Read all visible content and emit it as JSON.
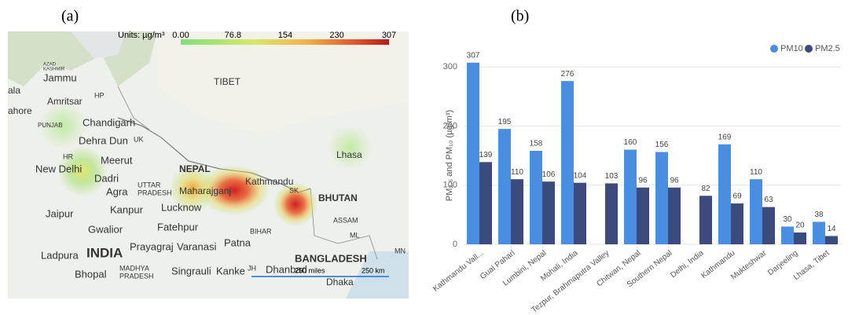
{
  "map": {
    "panel_label": "(a)",
    "units": "Units: µg/m³",
    "colorbar_ticks": [
      {
        "value": 0,
        "label": "0.00"
      },
      76.8,
      154,
      230,
      307
    ],
    "colorbar_lim": [
      0,
      307
    ],
    "places": [
      "Jammu",
      "Amritsar",
      "HP",
      "Chandigarh",
      "PUNJAB",
      "Dehra Dun",
      "UK",
      "HR",
      "New Delhi",
      "Meerut",
      "Dadri",
      "UTTAR",
      "PRADESH",
      "Agra",
      "Kanpur",
      "Lucknow",
      "Jaipur",
      "Gwalior",
      "Fatehpur",
      "Prayagraj",
      "Varanasi",
      "Patna",
      "BIHAR",
      "Ladpura",
      "INDIA",
      "Bhopal",
      "MADHYA",
      "PRADESH",
      "Singrauli",
      "Kanke",
      "JH",
      "Dhanbad",
      "BANGLADESH",
      "Dhaka",
      "TIBET",
      "NEPAL",
      "Kathmandu",
      "Maharajganj",
      "BHUTAN",
      "ASSAM",
      "ML",
      "MN",
      "Lhasa",
      "SK",
      "ala",
      "ahore",
      "AZAD",
      "KASHMIR"
    ],
    "scale_bar": [
      "250 miles",
      "250 km"
    ]
  },
  "chart_data": {
    "type": "bar",
    "panel_label": "(b)",
    "y_label": "PM₂.₅ and PM₁₀ (µg/m³)",
    "categories": [
      "Kathmandu Vall...",
      "Gual Pahari",
      "Lumbini, Nepal",
      "Mohali, India",
      "Tezpur, Brahmaputra Valley",
      "Chitwan, Nepal",
      "Southern Nepal",
      "Delhi, India",
      "Kathmandu",
      "Mukteshwar",
      "Darjeeling",
      "Lhasa, Tibet"
    ],
    "series": [
      {
        "name": "PM10",
        "color": "#4a8fdf",
        "values": [
          307,
          195,
          158,
          276,
          null,
          160,
          156,
          null,
          169,
          110,
          30,
          38
        ]
      },
      {
        "name": "PM2.5",
        "color": "#3d4b7c",
        "values": [
          139,
          110,
          106,
          104,
          103,
          96,
          96,
          82,
          69,
          63,
          20,
          14
        ]
      }
    ],
    "ylim": [
      0,
      320
    ],
    "yticks": [
      0,
      100,
      200,
      300
    ],
    "grid": true,
    "legend": "top-right"
  }
}
